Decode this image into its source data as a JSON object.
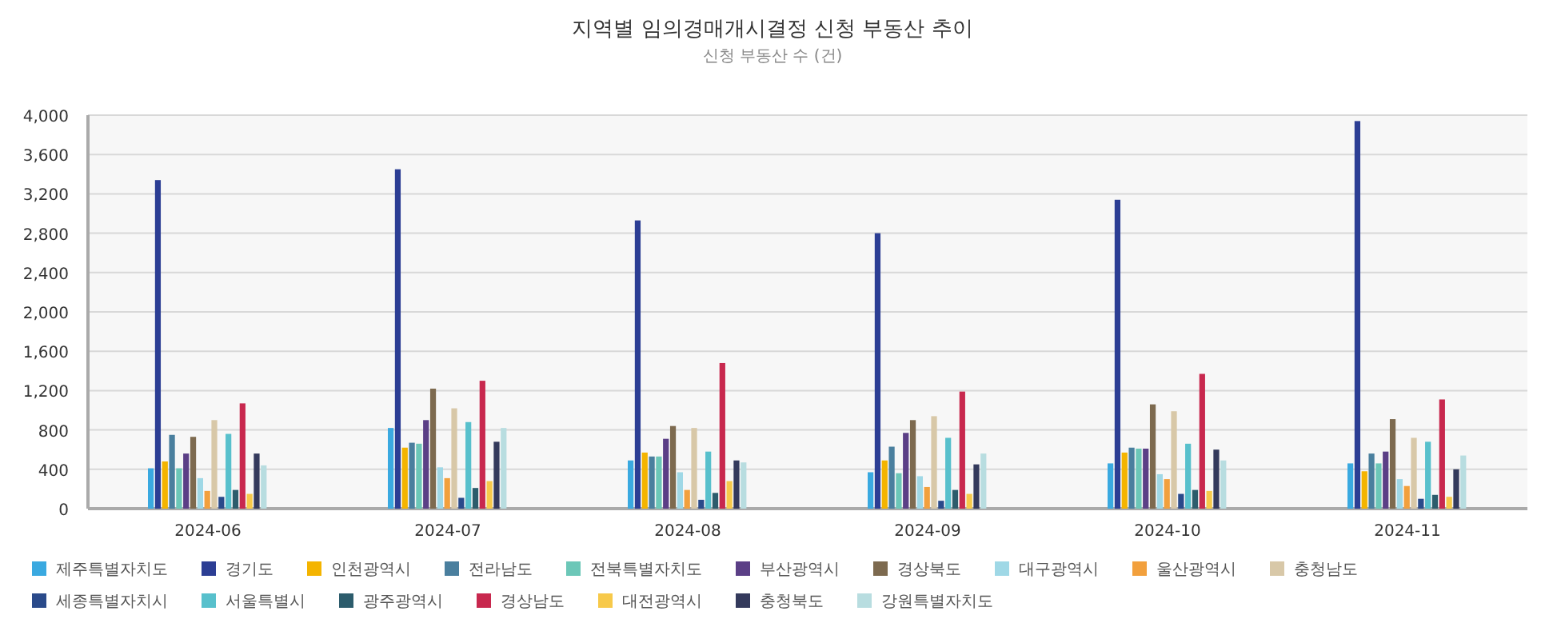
{
  "chart_data": {
    "type": "bar",
    "title": "지역별 임의경매개시결정 신청 부동산 추이",
    "subtitle": "신청 부동산 수 (건)",
    "categories": [
      "2024-06",
      "2024-07",
      "2024-08",
      "2024-09",
      "2024-10",
      "2024-11"
    ],
    "series": [
      {
        "name": "제주특별자치도",
        "color": "#3aa9e0",
        "values": [
          410,
          820,
          490,
          370,
          460,
          460
        ]
      },
      {
        "name": "경기도",
        "color": "#2c3e94",
        "values": [
          3340,
          3450,
          2930,
          2800,
          3140,
          3940
        ]
      },
      {
        "name": "인천광역시",
        "color": "#f4b400",
        "values": [
          480,
          620,
          570,
          490,
          570,
          380
        ]
      },
      {
        "name": "전라남도",
        "color": "#4a7f9e",
        "values": [
          750,
          670,
          530,
          630,
          620,
          560
        ]
      },
      {
        "name": "전북특별자치도",
        "color": "#6cc7b8",
        "values": [
          410,
          660,
          530,
          360,
          610,
          460
        ]
      },
      {
        "name": "부산광역시",
        "color": "#5b3f86",
        "values": [
          560,
          900,
          710,
          770,
          610,
          580
        ]
      },
      {
        "name": "경상북도",
        "color": "#7d6a4f",
        "values": [
          730,
          1220,
          840,
          900,
          1060,
          910
        ]
      },
      {
        "name": "대구광역시",
        "color": "#9fd8e6",
        "values": [
          310,
          420,
          370,
          330,
          350,
          300
        ]
      },
      {
        "name": "울산광역시",
        "color": "#f2a03d",
        "values": [
          180,
          310,
          190,
          220,
          300,
          230
        ]
      },
      {
        "name": "충청남도",
        "color": "#d8c8a8",
        "values": [
          900,
          1020,
          820,
          940,
          990,
          720
        ]
      },
      {
        "name": "세종특별자치시",
        "color": "#2a4a8a",
        "values": [
          120,
          110,
          90,
          80,
          150,
          100
        ]
      },
      {
        "name": "서울특별시",
        "color": "#58c0cc",
        "values": [
          760,
          880,
          580,
          720,
          660,
          680
        ]
      },
      {
        "name": "광주광역시",
        "color": "#2c5c6c",
        "values": [
          190,
          210,
          160,
          190,
          190,
          140
        ]
      },
      {
        "name": "경상남도",
        "color": "#c8284e",
        "values": [
          1070,
          1300,
          1480,
          1190,
          1370,
          1110
        ]
      },
      {
        "name": "대전광역시",
        "color": "#f7c94a",
        "values": [
          150,
          280,
          280,
          150,
          180,
          120
        ]
      },
      {
        "name": "충청북도",
        "color": "#343a5c",
        "values": [
          560,
          680,
          490,
          450,
          600,
          400
        ]
      },
      {
        "name": "강원특별자치도",
        "color": "#b8dde0",
        "values": [
          440,
          820,
          470,
          560,
          490,
          540
        ]
      }
    ],
    "ylim": [
      0,
      4000
    ],
    "yticks": [
      0,
      400,
      800,
      {
        "value": 1200,
        "label": "1,200"
      },
      {
        "value": 1600,
        "label": "1,600"
      },
      {
        "value": 2000,
        "label": "2,000"
      },
      {
        "value": 2400,
        "label": "2,400"
      },
      {
        "value": 2800,
        "label": "2,800"
      },
      {
        "value": 3200,
        "label": "3,200"
      },
      {
        "value": 3600,
        "label": "3,600"
      },
      {
        "value": 4000,
        "label": "4,000"
      }
    ],
    "grid": "y",
    "legend": "bottom"
  }
}
